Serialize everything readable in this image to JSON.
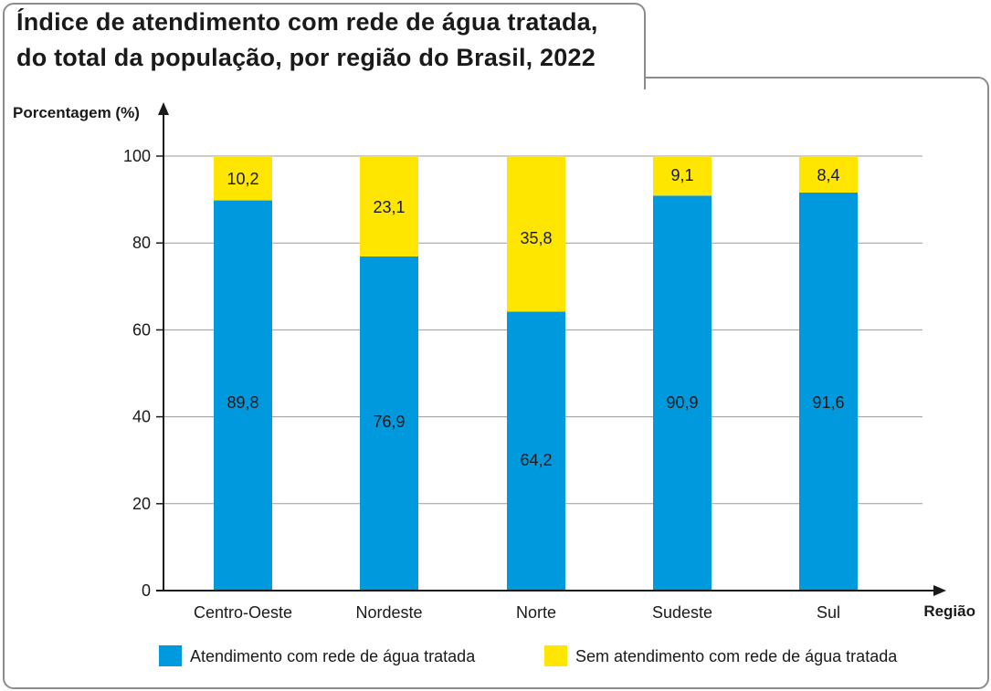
{
  "title_lines": [
    "Índice de atendimento com rede de água tratada,",
    "do total da população, por região do Brasil, 2022"
  ],
  "chart_data": {
    "type": "bar",
    "stacked": true,
    "title": "Índice de atendimento com rede de água tratada, do total da população, por região do Brasil, 2022",
    "xlabel": "Região",
    "ylabel": "Porcentagem (%)",
    "ylim": [
      0,
      100
    ],
    "yticks": [
      "0",
      "20",
      "40",
      "60",
      "80",
      "100"
    ],
    "grid": true,
    "legend_position": "bottom",
    "categories": [
      "Centro-Oeste",
      "Nordeste",
      "Norte",
      "Sudeste",
      "Sul"
    ],
    "series": [
      {
        "name": "Atendimento com rede de água tratada",
        "color": "#0099dd",
        "values": [
          89.8,
          76.9,
          64.2,
          90.9,
          91.6
        ],
        "labels": [
          "89,8",
          "76,9",
          "64,2",
          "90,9",
          "91,6"
        ]
      },
      {
        "name": "Sem atendimento com rede de água tratada",
        "color": "#ffe600",
        "values": [
          10.2,
          23.1,
          35.8,
          9.1,
          8.4
        ],
        "labels": [
          "10,2",
          "23,1",
          "35,8",
          "9,1",
          "8,4"
        ]
      }
    ]
  }
}
